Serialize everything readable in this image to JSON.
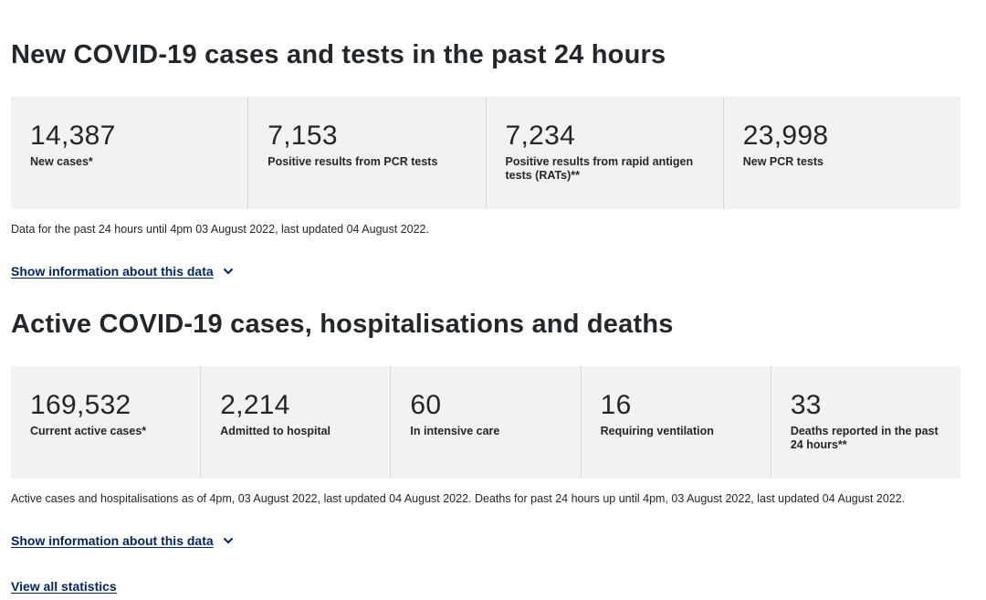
{
  "section1": {
    "title": "New COVID-19 cases and tests in the past 24 hours",
    "stats": [
      {
        "value": "14,387",
        "label": "New cases*"
      },
      {
        "value": "7,153",
        "label": "Positive results from PCR tests"
      },
      {
        "value": "7,234",
        "label": "Positive results from rapid antigen tests (RATs)**"
      },
      {
        "value": "23,998",
        "label": "New PCR tests"
      }
    ],
    "note": "Data for the past 24 hours until 4pm 03 August 2022, last updated 04 August 2022.",
    "toggle_label": "Show information about this data"
  },
  "section2": {
    "title": "Active COVID-19 cases, hospitalisations and deaths",
    "stats": [
      {
        "value": "169,532",
        "label": "Current active cases*"
      },
      {
        "value": "2,214",
        "label": "Admitted to hospital"
      },
      {
        "value": "60",
        "label": "In intensive care"
      },
      {
        "value": "16",
        "label": "Requiring ventilation"
      },
      {
        "value": "33",
        "label": "Deaths reported in the past 24 hours**"
      }
    ],
    "note": "Active cases and hospitalisations as of 4pm, 03 August 2022, last updated 04 August 2022. Deaths for past 24 hours up until 4pm, 03 August 2022, last updated 04 August 2022.",
    "toggle_label": "Show information about this data"
  },
  "footer": {
    "view_all_label": "View all statistics"
  },
  "colors": {
    "link": "#002664",
    "panel_bg": "#f2f2f2",
    "text": "#22272b"
  },
  "icons": {
    "toggle": "chevron-down-icon"
  }
}
